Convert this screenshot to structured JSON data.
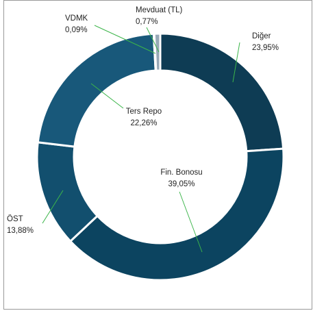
{
  "chart_data": {
    "type": "donut",
    "categories": [
      "Diğer",
      "Fin. Bonosu",
      "ÖST",
      "Ters Repo",
      "VDMK",
      "Mevduat (TL)"
    ],
    "values": [
      23.95,
      39.05,
      13.88,
      22.26,
      0.09,
      0.77
    ],
    "value_labels": [
      "23,95%",
      "39,05%",
      "13,88%",
      "22,26%",
      "0,09%",
      "0,77%"
    ],
    "colors": [
      "#0e3c54",
      "#0c4460",
      "#124f6e",
      "#18587a",
      "#5a8aa5",
      "#98a9b7"
    ]
  }
}
